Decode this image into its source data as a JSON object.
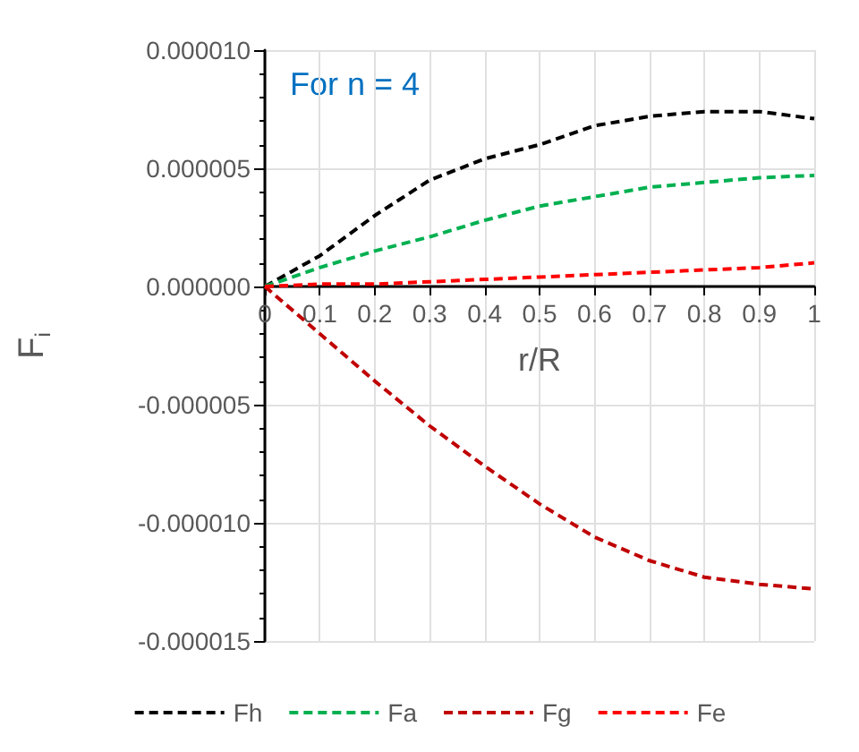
{
  "chart_data": {
    "type": "line",
    "xlabel": "r/R",
    "ylabel": "F$_{i}$",
    "annotations": [
      "For n = 4"
    ],
    "x": [
      0,
      0.1,
      0.2,
      0.3,
      0.4,
      0.5,
      0.6,
      0.7,
      0.8,
      0.9,
      1
    ],
    "series": [
      {
        "name": "Fh",
        "color": "#000000",
        "line_style": "dashed",
        "values": [
          0,
          1.3e-06,
          3e-06,
          4.5e-06,
          5.4e-06,
          6e-06,
          6.8e-06,
          7.2e-06,
          7.4e-06,
          7.4e-06,
          7.1e-06
        ]
      },
      {
        "name": "Fa",
        "color": "#00b050",
        "line_style": "dashed",
        "values": [
          0,
          8e-07,
          1.5e-06,
          2.1e-06,
          2.8e-06,
          3.4e-06,
          3.8e-06,
          4.2e-06,
          4.4e-06,
          4.6e-06,
          4.7e-06
        ]
      },
      {
        "name": "Fg",
        "color": "#c00000",
        "line_style": "dashed",
        "values": [
          0,
          -2e-06,
          -4e-06,
          -5.9e-06,
          -7.6e-06,
          -9.2e-06,
          -1.06e-05,
          -1.16e-05,
          -1.23e-05,
          -1.26e-05,
          -1.28e-05
        ]
      },
      {
        "name": "Fe",
        "color": "#ff0000",
        "line_style": "dashed",
        "values": [
          0,
          1e-07,
          1e-07,
          2e-07,
          3e-07,
          4e-07,
          5e-07,
          6e-07,
          7e-07,
          8e-07,
          1e-06
        ]
      }
    ],
    "xlim": [
      0,
      1
    ],
    "xticks": [
      0,
      0.1,
      0.2,
      0.3,
      0.4,
      0.5,
      0.6,
      0.7,
      0.8,
      0.9,
      1
    ],
    "ylim": [
      -1.5e-05,
      1e-05
    ],
    "yticks": [
      {
        "value": -1.5e-05,
        "label": "-0.000015"
      },
      {
        "value": -1e-05,
        "label": "-0.000010"
      },
      {
        "value": -5e-06,
        "label": "-0.000005"
      },
      {
        "value": 0,
        "label": "0.000000"
      },
      {
        "value": 5e-06,
        "label": "0.000005"
      },
      {
        "value": 1e-05,
        "label": "0.000010"
      }
    ],
    "grid": true,
    "legend": "bottom",
    "marker": "none"
  }
}
